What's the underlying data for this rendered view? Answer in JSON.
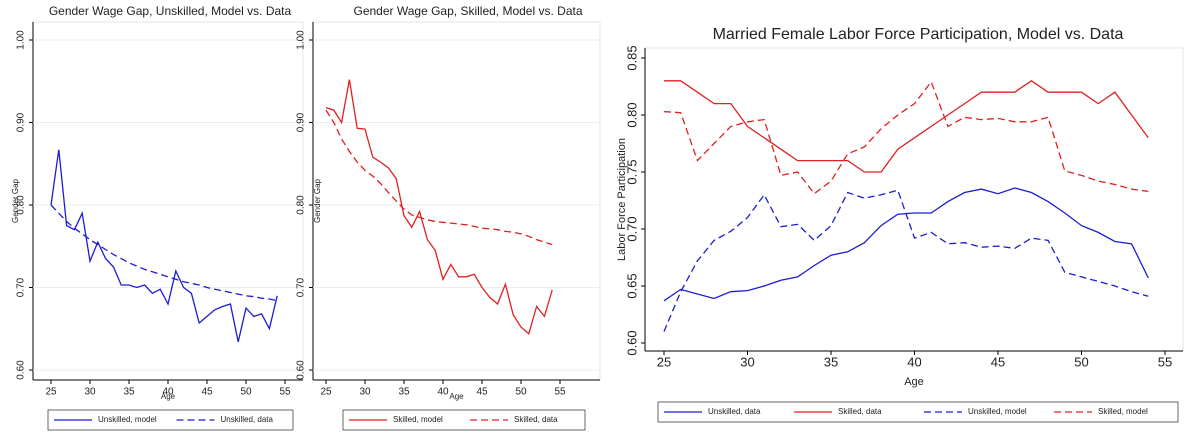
{
  "chart_data": [
    {
      "type": "line",
      "title": "Gender Wage Gap, Unskilled, Model vs. Data",
      "xlabel": "Age",
      "ylabel": "Gender Gap",
      "x": [
        25,
        26,
        27,
        28,
        29,
        30,
        31,
        32,
        33,
        34,
        35,
        36,
        37,
        38,
        39,
        40,
        41,
        42,
        43,
        44,
        45,
        46,
        47,
        48,
        49,
        50,
        51,
        52,
        53,
        54
      ],
      "xlim": [
        25,
        55
      ],
      "xticks": [
        25,
        30,
        35,
        40,
        45,
        50,
        55
      ],
      "ylim": [
        0.6,
        1.0
      ],
      "yticks": [
        {
          "value": 0.6,
          "label": "0.60"
        },
        {
          "value": 0.7,
          "label": "0.70"
        },
        {
          "value": 0.8,
          "label": "0.80"
        },
        {
          "value": 0.9,
          "label": "0.90"
        },
        {
          "value": 1.0,
          "label": "1.00"
        }
      ],
      "grid": true,
      "series": [
        {
          "name": "Unskilled, model",
          "color": "#1c1cd6",
          "style": "solid",
          "values": [
            0.8,
            0.867,
            0.775,
            0.77,
            0.79,
            0.732,
            0.755,
            0.735,
            0.725,
            0.703,
            0.703,
            0.7,
            0.703,
            0.693,
            0.698,
            0.68,
            0.72,
            0.7,
            0.693,
            0.657,
            0.665,
            0.673,
            0.677,
            0.68,
            0.634,
            0.675,
            0.665,
            0.668,
            0.65,
            0.69
          ]
        },
        {
          "name": "Unskilled, data",
          "color": "#1c1cd6",
          "style": "dashed",
          "values": [
            0.8,
            0.79,
            0.78,
            0.772,
            0.765,
            0.758,
            0.752,
            0.746,
            0.74,
            0.735,
            0.73,
            0.726,
            0.722,
            0.719,
            0.716,
            0.713,
            0.71,
            0.707,
            0.705,
            0.703,
            0.7,
            0.698,
            0.696,
            0.694,
            0.692,
            0.69,
            0.689,
            0.687,
            0.686,
            0.684
          ]
        }
      ]
    },
    {
      "type": "line",
      "title": "Gender Wage Gap, Skilled, Model vs. Data",
      "xlabel": "Age",
      "ylabel": "Gender Gap",
      "x": [
        25,
        26,
        27,
        28,
        29,
        30,
        31,
        32,
        33,
        34,
        35,
        36,
        37,
        38,
        39,
        40,
        41,
        42,
        43,
        44,
        45,
        46,
        47,
        48,
        49,
        50,
        51,
        52,
        53,
        54
      ],
      "xlim": [
        25,
        55
      ],
      "xticks": [
        25,
        30,
        35,
        40,
        45,
        50,
        55
      ],
      "ylim": [
        0.6,
        1.0
      ],
      "yticks": [
        {
          "value": 0.6,
          "label": "0.60"
        },
        {
          "value": 0.7,
          "label": "0.70"
        },
        {
          "value": 0.8,
          "label": "0.80"
        },
        {
          "value": 0.9,
          "label": "0.90"
        },
        {
          "value": 1.0,
          "label": "1.00"
        }
      ],
      "grid": true,
      "series": [
        {
          "name": "Skilled, model",
          "color": "#e02020",
          "style": "solid",
          "values": [
            0.918,
            0.915,
            0.9,
            0.952,
            0.893,
            0.892,
            0.858,
            0.852,
            0.845,
            0.832,
            0.787,
            0.773,
            0.792,
            0.758,
            0.745,
            0.71,
            0.728,
            0.713,
            0.713,
            0.716,
            0.7,
            0.688,
            0.68,
            0.704,
            0.667,
            0.652,
            0.644,
            0.677,
            0.665,
            0.697
          ]
        },
        {
          "name": "Skilled, data",
          "color": "#e02020",
          "style": "dashed",
          "values": [
            0.915,
            0.9,
            0.88,
            0.865,
            0.852,
            0.842,
            0.835,
            0.826,
            0.815,
            0.805,
            0.795,
            0.788,
            0.785,
            0.782,
            0.78,
            0.779,
            0.778,
            0.777,
            0.776,
            0.774,
            0.772,
            0.771,
            0.77,
            0.768,
            0.767,
            0.765,
            0.762,
            0.758,
            0.755,
            0.752
          ]
        }
      ]
    },
    {
      "type": "line",
      "title": "Married Female Labor Force Participation, Model vs. Data",
      "xlabel": "Age",
      "ylabel": "Labor Force Participation",
      "x": [
        25,
        26,
        27,
        28,
        29,
        30,
        31,
        32,
        33,
        34,
        35,
        36,
        37,
        38,
        39,
        40,
        41,
        42,
        43,
        44,
        45,
        46,
        47,
        48,
        49,
        50,
        51,
        52,
        53,
        54
      ],
      "xlim": [
        25,
        55
      ],
      "xticks": [
        25,
        30,
        35,
        40,
        45,
        50,
        55
      ],
      "ylim": [
        0.6,
        0.85
      ],
      "yticks": [
        {
          "value": 0.6,
          "label": "0.60"
        },
        {
          "value": 0.65,
          "label": "0.65"
        },
        {
          "value": 0.7,
          "label": "0.70"
        },
        {
          "value": 0.75,
          "label": "0.75"
        },
        {
          "value": 0.8,
          "label": "0.80"
        },
        {
          "value": 0.85,
          "label": "0.85"
        }
      ],
      "grid": false,
      "series": [
        {
          "name": "Unskilled, data",
          "color": "#1c1cd6",
          "style": "solid",
          "values": [
            0.637,
            0.647,
            0.643,
            0.639,
            0.645,
            0.646,
            0.65,
            0.655,
            0.658,
            0.668,
            0.677,
            0.68,
            0.688,
            0.703,
            0.713,
            0.714,
            0.714,
            0.724,
            0.732,
            0.735,
            0.731,
            0.736,
            0.732,
            0.724,
            0.714,
            0.703,
            0.697,
            0.689,
            0.687,
            0.657
          ]
        },
        {
          "name": "Skilled, data",
          "color": "#e02020",
          "style": "solid",
          "values": [
            0.83,
            0.83,
            0.82,
            0.81,
            0.81,
            0.79,
            0.78,
            0.77,
            0.76,
            0.76,
            0.76,
            0.76,
            0.75,
            0.75,
            0.77,
            0.78,
            0.79,
            0.8,
            0.81,
            0.82,
            0.82,
            0.82,
            0.83,
            0.82,
            0.82,
            0.82,
            0.81,
            0.82,
            0.8,
            0.78
          ]
        },
        {
          "name": "Unskilled, model",
          "color": "#1c1cd6",
          "style": "dashed",
          "values": [
            0.61,
            0.645,
            0.672,
            0.69,
            0.698,
            0.71,
            0.73,
            0.702,
            0.704,
            0.69,
            0.703,
            0.732,
            0.727,
            0.73,
            0.734,
            0.692,
            0.697,
            0.687,
            0.688,
            0.684,
            0.685,
            0.683,
            0.692,
            0.69,
            0.662,
            0.658,
            0.654,
            0.65,
            0.645,
            0.641
          ]
        },
        {
          "name": "Skilled, model",
          "color": "#e02020",
          "style": "dashed",
          "values": [
            0.803,
            0.802,
            0.76,
            0.775,
            0.79,
            0.794,
            0.796,
            0.747,
            0.75,
            0.731,
            0.742,
            0.766,
            0.772,
            0.788,
            0.8,
            0.81,
            0.829,
            0.79,
            0.798,
            0.796,
            0.797,
            0.794,
            0.794,
            0.798,
            0.751,
            0.747,
            0.742,
            0.739,
            0.735,
            0.733
          ]
        }
      ]
    }
  ]
}
